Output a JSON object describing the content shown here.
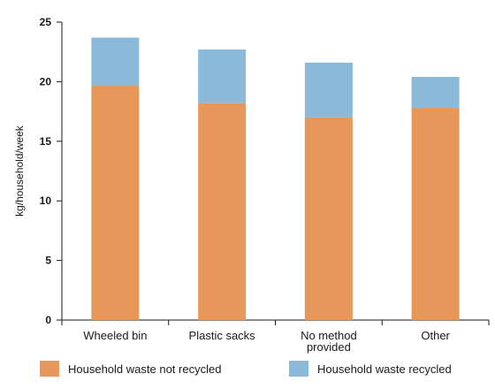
{
  "chart_data": {
    "type": "bar",
    "stacked": true,
    "title": "",
    "xlabel": "",
    "ylabel": "kg/household/week",
    "ylim": [
      0,
      25
    ],
    "yticks": [
      0,
      5,
      10,
      15,
      20,
      25
    ],
    "grid": false,
    "legend_position": "bottom",
    "categories": [
      [
        "Wheeled bin"
      ],
      [
        "Plastic sacks"
      ],
      [
        "No method",
        "provided"
      ],
      [
        "Other"
      ]
    ],
    "series": [
      {
        "name": "Household waste not recycled",
        "color": "#E8975A",
        "values": [
          19.7,
          18.2,
          17.0,
          17.8
        ]
      },
      {
        "name": "Household waste recycled",
        "color": "#8BB9DA",
        "values": [
          4.0,
          4.5,
          4.6,
          2.6
        ]
      }
    ]
  }
}
